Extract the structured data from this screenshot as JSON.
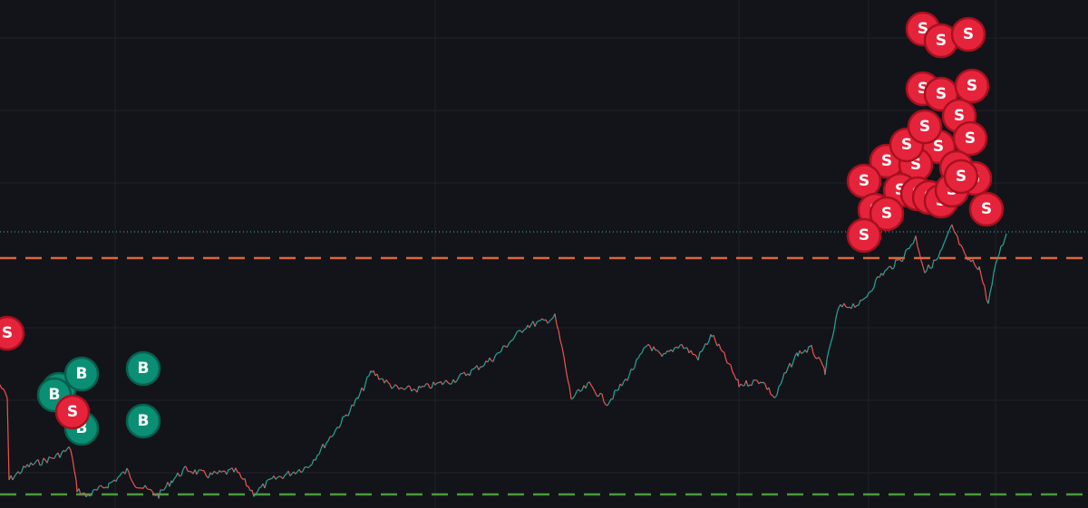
{
  "buy_markers": [
    "B",
    "B",
    "B",
    "B",
    "B",
    "B"
  ],
  "sell_markers": [
    "S",
    "S",
    "S",
    "S",
    "S",
    "S",
    "S",
    "S",
    "S",
    "S",
    "S",
    "S",
    "S",
    "S",
    "S",
    "S",
    "S",
    "S",
    "S",
    "S",
    "S",
    "S",
    "S",
    "S",
    "S",
    "S",
    "S",
    "S",
    "S"
  ]
}
